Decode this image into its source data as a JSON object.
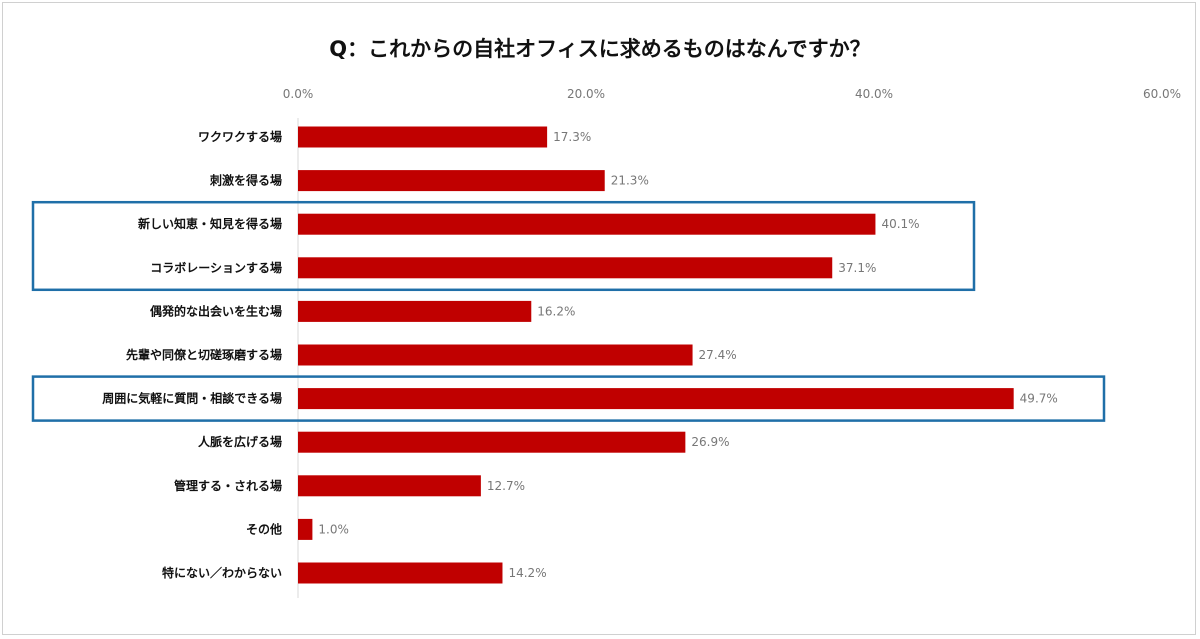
{
  "chart_data": {
    "type": "bar",
    "orientation": "horizontal",
    "title": "Q：これからの自社オフィスに求めるものはなんですか？",
    "xlim": [
      0,
      60
    ],
    "x_ticks": [
      "0.0%",
      "20.0%",
      "40.0%",
      "60.0%"
    ],
    "x_tick_values": [
      0,
      20,
      40,
      60
    ],
    "categories": [
      "ワクワクする場",
      "刺激を得る場",
      "新しい知恵・知見を得る場",
      "コラボレーションする場",
      "偶発的な出会いを生む場",
      "先輩や同僚と切磋琢磨する場",
      "周囲に気軽に質問・相談できる場",
      "人脈を広げる場",
      "管理する・される場",
      "その他",
      "特にない／わからない"
    ],
    "values": [
      17.3,
      21.3,
      40.1,
      37.1,
      16.2,
      27.4,
      49.7,
      26.9,
      12.7,
      1.0,
      14.2
    ],
    "value_labels": [
      "17.3%",
      "21.3%",
      "40.1%",
      "37.1%",
      "16.2%",
      "27.4%",
      "49.7%",
      "26.9%",
      "12.7%",
      "1.0%",
      "14.2%"
    ],
    "highlighted_groups": [
      [
        2,
        3
      ],
      [
        6
      ]
    ],
    "grid": false,
    "legend": "none"
  },
  "colors": {
    "bar": "#c00000",
    "highlight_box": "#1f6fa8"
  }
}
